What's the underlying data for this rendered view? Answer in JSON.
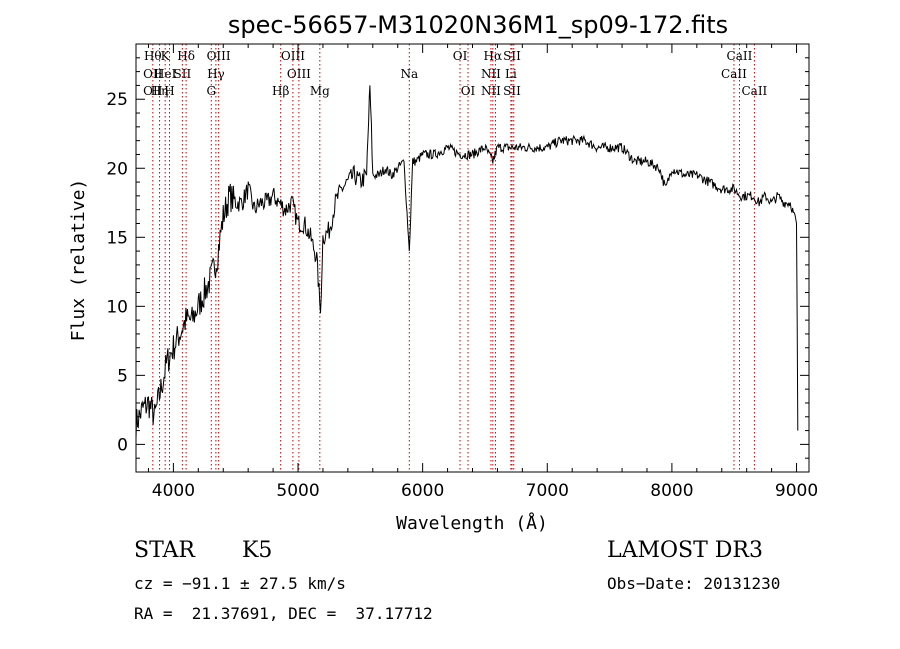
{
  "chart_data": {
    "type": "line",
    "title": "spec-56657-M31020N36M1_sp09-172.fits",
    "xlabel": "Wavelength (Å)",
    "ylabel": "Flux (relative)",
    "xlim": [
      3700,
      9100
    ],
    "ylim": [
      -2,
      29
    ],
    "xticks": [
      4000,
      5000,
      6000,
      7000,
      8000,
      9000
    ],
    "yticks": [
      0,
      5,
      10,
      15,
      20,
      25
    ],
    "grid": false,
    "series": [
      {
        "x": [
          3700,
          3750,
          3800,
          3850,
          3900,
          3950,
          4000,
          4050,
          4100,
          4150,
          4200,
          4250,
          4300,
          4350,
          4400,
          4450,
          4500,
          4550,
          4600,
          4650,
          4700,
          4750,
          4800,
          4850,
          4900,
          4950,
          5000,
          5050,
          5100,
          5150,
          5180,
          5200,
          5250,
          5300,
          5350,
          5400,
          5450,
          5500,
          5550,
          5577,
          5600,
          5650,
          5700,
          5750,
          5800,
          5850,
          5893,
          5920,
          5950,
          6000,
          6100,
          6200,
          6300,
          6400,
          6500,
          6563,
          6600,
          6700,
          6800,
          6900,
          7000,
          7100,
          7200,
          7300,
          7400,
          7500,
          7600,
          7700,
          7800,
          7900,
          7950,
          8000,
          8100,
          8200,
          8300,
          8400,
          8500,
          8550,
          8600,
          8650,
          8700,
          8750,
          8800,
          8850,
          8900,
          8950,
          9000,
          9010
        ],
        "y": [
          1.5,
          2.5,
          3.0,
          2.0,
          4.0,
          6.0,
          7.0,
          8.0,
          9.0,
          9.0,
          10.0,
          11.0,
          12.0,
          13.5,
          16.5,
          18.0,
          17.5,
          17.5,
          18.5,
          17.0,
          17.5,
          17.5,
          18.0,
          17.5,
          17.0,
          17.5,
          16.0,
          16.0,
          15.0,
          13.5,
          9.5,
          15.0,
          15.5,
          17.5,
          18.5,
          19.0,
          19.5,
          19.0,
          19.5,
          26.0,
          19.5,
          19.5,
          20.0,
          19.5,
          20.0,
          20.5,
          14.0,
          20.5,
          20.5,
          21.0,
          21.0,
          21.5,
          21.0,
          21.0,
          21.5,
          20.5,
          21.5,
          21.5,
          21.5,
          21.5,
          21.5,
          22.0,
          22.0,
          22.0,
          21.5,
          21.5,
          21.5,
          20.5,
          20.5,
          20.0,
          18.5,
          20.0,
          19.5,
          19.5,
          19.0,
          18.5,
          18.5,
          18.0,
          18.0,
          18.0,
          17.5,
          18.0,
          17.5,
          18.0,
          17.5,
          17.5,
          16.0,
          1.0
        ]
      }
    ],
    "lines": [
      {
        "wl": 3835,
        "labels": [
          "Hθ",
          "OII",
          "OII"
        ]
      },
      {
        "wl": 3889,
        "labels": [
          "",
          "",
          "Hη"
        ]
      },
      {
        "wl": 3934,
        "labels": [
          "K",
          "HeI",
          ""
        ]
      },
      {
        "wl": 3969,
        "labels": [
          "",
          "",
          "H"
        ]
      },
      {
        "wl": 4072,
        "labels": [
          "",
          "SII",
          ""
        ]
      },
      {
        "wl": 4102,
        "labels": [
          "Hδ",
          "",
          ""
        ]
      },
      {
        "wl": 4304,
        "labels": [
          "",
          "",
          "G"
        ]
      },
      {
        "wl": 4341,
        "labels": [
          "",
          "Hγ",
          ""
        ]
      },
      {
        "wl": 4363,
        "labels": [
          "OIII",
          "",
          ""
        ]
      },
      {
        "wl": 4861,
        "labels": [
          "",
          "",
          "Hβ"
        ]
      },
      {
        "wl": 4959,
        "labels": [
          "OIII",
          "",
          ""
        ]
      },
      {
        "wl": 5007,
        "labels": [
          "",
          "OIII",
          ""
        ]
      },
      {
        "wl": 5175,
        "labels": [
          "",
          "",
          "Mg"
        ]
      },
      {
        "wl": 5893,
        "labels": [
          "",
          "Na",
          ""
        ]
      },
      {
        "wl": 6300,
        "labels": [
          "OI",
          "",
          ""
        ]
      },
      {
        "wl": 6364,
        "labels": [
          "",
          "",
          "OI"
        ]
      },
      {
        "wl": 6548,
        "labels": [
          "",
          "NII",
          "NII"
        ]
      },
      {
        "wl": 6563,
        "labels": [
          "Hα",
          "",
          ""
        ]
      },
      {
        "wl": 6584,
        "labels": [
          "",
          "",
          ""
        ]
      },
      {
        "wl": 6708,
        "labels": [
          "",
          "Li",
          ""
        ]
      },
      {
        "wl": 6717,
        "labels": [
          "SII",
          "",
          "SII"
        ]
      },
      {
        "wl": 6731,
        "labels": [
          "",
          "",
          ""
        ]
      },
      {
        "wl": 8498,
        "labels": [
          "",
          "CaII",
          ""
        ]
      },
      {
        "wl": 8542,
        "labels": [
          "CaII",
          "",
          ""
        ]
      },
      {
        "wl": 8662,
        "labels": [
          "",
          "",
          "CaII"
        ]
      }
    ],
    "colors": {
      "spectrum": "#000000",
      "line_markers": "#cc0000"
    }
  },
  "info": {
    "class": "STAR",
    "subclass": "K5",
    "survey": "LAMOST DR3",
    "cz": "cz = −91.1 ± 27.5 km/s",
    "obs_date": "Obs−Date: 20131230",
    "coords": "RA =  21.37691, DEC =  37.17712"
  }
}
